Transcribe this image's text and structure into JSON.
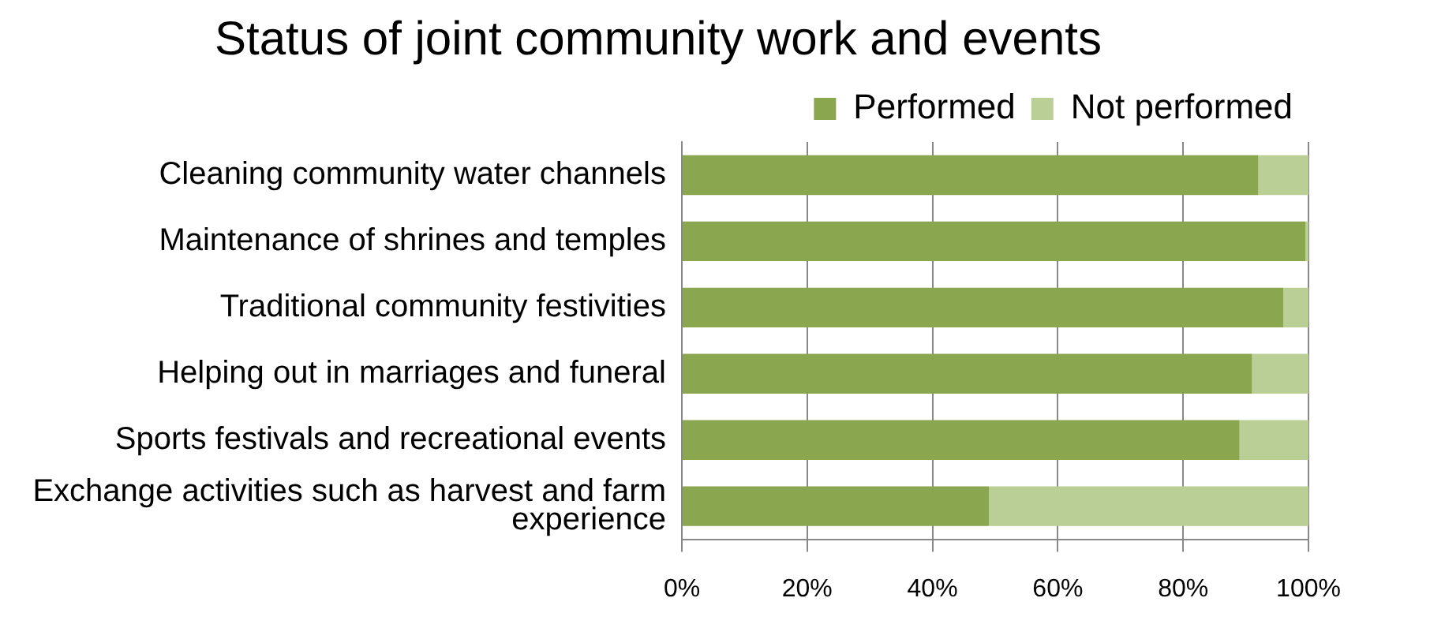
{
  "chart_data": {
    "type": "bar",
    "orientation": "horizontal",
    "stacked": true,
    "title": "Status of joint community work and events",
    "categories": [
      "Cleaning community water channels",
      "Maintenance of shrines and temples",
      "Traditional community festivities",
      "Helping out in marriages and funeral",
      "Sports festivals and recreational events",
      "Exchange activities such as harvest and farm experience"
    ],
    "series": [
      {
        "name": "Performed",
        "color": "#8aa64e",
        "values": [
          92,
          99.5,
          96,
          91,
          89,
          49
        ]
      },
      {
        "name": "Not performed",
        "color": "#b9cf96",
        "values": [
          8,
          0.5,
          4,
          9,
          11,
          51
        ]
      }
    ],
    "xlim": [
      0,
      100
    ],
    "xticks": [
      {
        "value": 0,
        "label": "0%"
      },
      {
        "value": 20,
        "label": "20%"
      },
      {
        "value": 40,
        "label": "40%"
      },
      {
        "value": 60,
        "label": "60%"
      },
      {
        "value": 80,
        "label": "80%"
      },
      {
        "value": 100,
        "label": "100%"
      }
    ],
    "grid": "x",
    "legend": "top right"
  }
}
